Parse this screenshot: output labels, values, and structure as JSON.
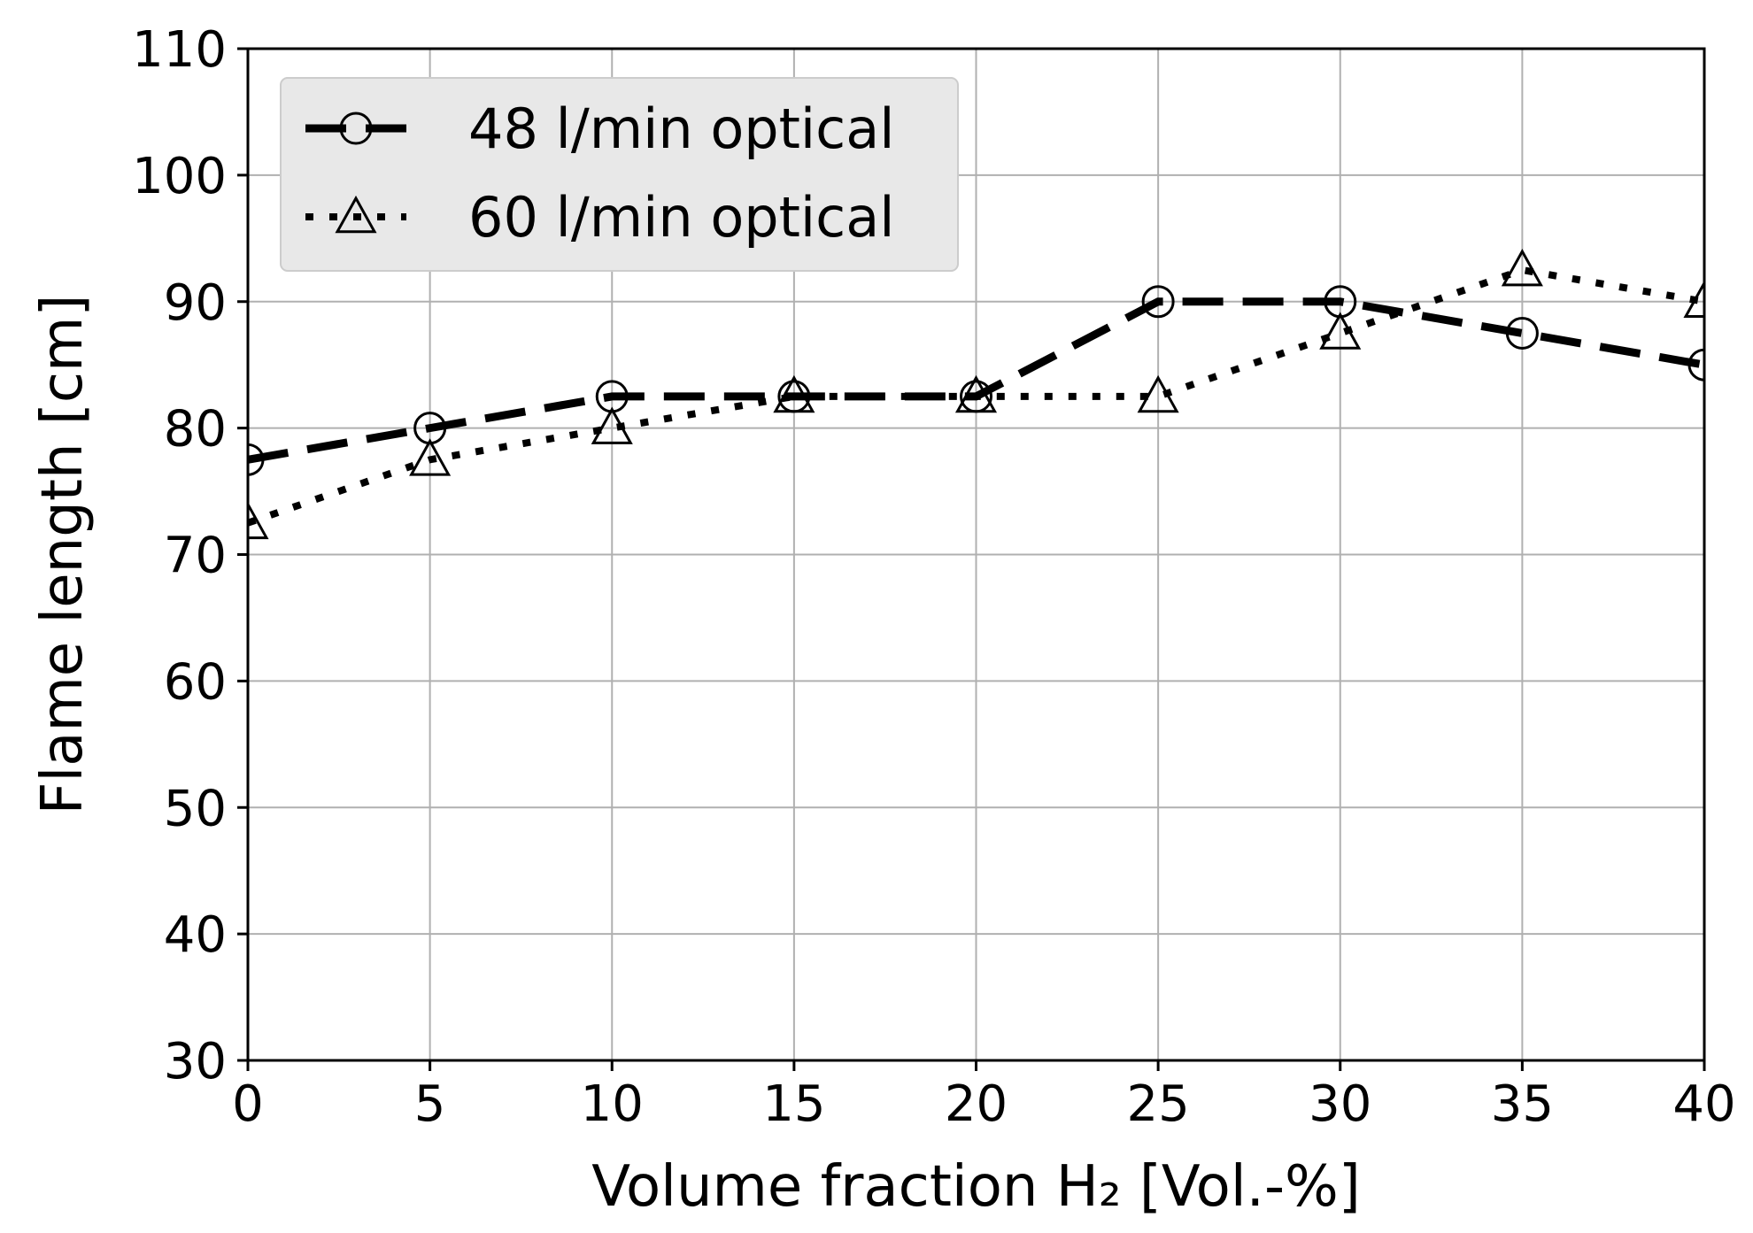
{
  "chart_data": {
    "type": "line",
    "xlabel": "Volume fraction H₂ [Vol.-%]",
    "ylabel": "Flame length [cm]",
    "xlim": [
      0,
      40
    ],
    "ylim": [
      30,
      110
    ],
    "xticks": [
      0,
      5,
      10,
      15,
      20,
      25,
      30,
      35,
      40
    ],
    "yticks": [
      30,
      40,
      50,
      60,
      70,
      80,
      90,
      100,
      110
    ],
    "grid": true,
    "legend_position": "top-left",
    "series": [
      {
        "name": "48 l/min optical",
        "marker": "circle",
        "line_style": "dashed",
        "color": "#000000",
        "x": [
          0,
          5,
          10,
          15,
          20,
          25,
          30,
          35,
          40
        ],
        "y": [
          77.5,
          80,
          82.5,
          82.5,
          82.5,
          90,
          90,
          87.5,
          85
        ]
      },
      {
        "name": "60 l/min optical",
        "marker": "triangle",
        "line_style": "dotted",
        "color": "#000000",
        "x": [
          0,
          5,
          10,
          15,
          20,
          25,
          30,
          35,
          40
        ],
        "y": [
          72.5,
          77.5,
          80,
          82.5,
          82.5,
          82.5,
          87.5,
          92.5,
          90
        ]
      }
    ]
  }
}
